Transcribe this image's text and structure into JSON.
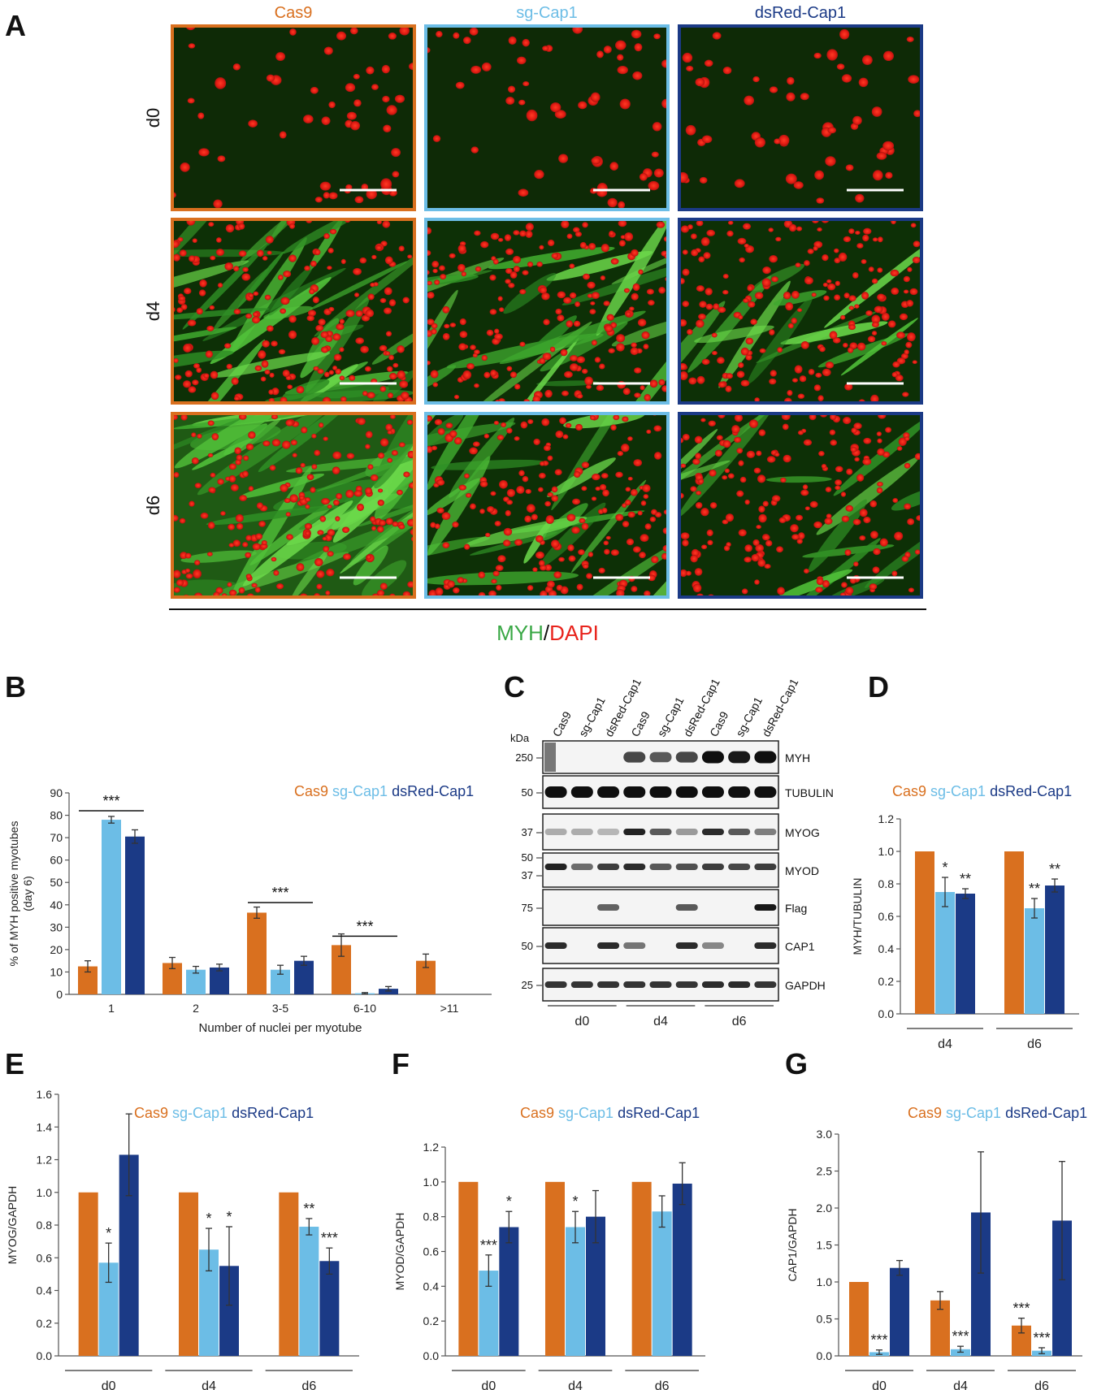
{
  "colors": {
    "cas9": "#d9701f",
    "sg": "#6cbde6",
    "ds": "#1b3a86",
    "green": "#39a845",
    "red": "#e8231c"
  },
  "panel_letters": [
    "A",
    "B",
    "C",
    "D",
    "E",
    "F",
    "G"
  ],
  "panelA": {
    "columns": [
      "Cas9",
      "sg-Cap1",
      "dsRed-Cap1"
    ],
    "rows": [
      "d0",
      "d4",
      "d6"
    ],
    "stain_green": "MYH",
    "stain_slash": "/",
    "stain_red": "DAPI"
  },
  "legend": [
    "Cas9",
    "sg-Cap1",
    "dsRed-Cap1"
  ],
  "panelC": {
    "kda_label": "kDa",
    "lanes": [
      "Cas9",
      "sg-Cap1",
      "dsRed-Cap1",
      "Cas9",
      "sg-Cap1",
      "dsRed-Cap1",
      "Cas9",
      "sg-Cap1",
      "dsRed-Cap1"
    ],
    "groups": [
      "d0",
      "d4",
      "d6"
    ],
    "blots": [
      {
        "name": "MYH",
        "markers": [
          "250"
        ],
        "bands": [
          0,
          0,
          0,
          0.7,
          0.6,
          0.7,
          1,
          0.95,
          1
        ]
      },
      {
        "name": "TUBULIN",
        "markers": [
          "50"
        ],
        "bands": [
          1,
          1,
          1,
          1,
          1,
          1,
          1,
          1,
          1
        ]
      },
      {
        "name": "MYOG",
        "markers": [
          "37"
        ],
        "bands": [
          0.15,
          0.15,
          0.1,
          0.9,
          0.6,
          0.25,
          0.85,
          0.6,
          0.4
        ]
      },
      {
        "name": "MYOD",
        "markers": [
          "50",
          "37"
        ],
        "bands": [
          0.9,
          0.5,
          0.75,
          0.85,
          0.6,
          0.65,
          0.75,
          0.7,
          0.75
        ]
      },
      {
        "name": "Flag",
        "markers": [
          "75"
        ],
        "bands": [
          0,
          0,
          0.55,
          0,
          0,
          0.6,
          0,
          0,
          0.95
        ]
      },
      {
        "name": "CAP1",
        "markers": [
          "50"
        ],
        "bands": [
          0.85,
          0,
          0.85,
          0.45,
          0,
          0.85,
          0.35,
          0,
          0.85
        ]
      },
      {
        "name": "GAPDH",
        "markers": [
          "25"
        ],
        "bands": [
          0.8,
          0.8,
          0.8,
          0.8,
          0.8,
          0.8,
          0.85,
          0.85,
          0.8
        ]
      }
    ]
  },
  "chart_data": [
    {
      "panel": "B",
      "type": "bar",
      "categories": [
        "1",
        "2",
        "3-5",
        "6-10",
        ">11"
      ],
      "series": [
        {
          "name": "Cas9",
          "values": [
            12.5,
            14,
            36.5,
            22,
            15
          ],
          "errors": [
            2.5,
            2.5,
            2.5,
            5,
            3
          ]
        },
        {
          "name": "sg-Cap1",
          "values": [
            78,
            11,
            11,
            0.5,
            0
          ],
          "errors": [
            1.5,
            1.5,
            2,
            0.3,
            0
          ]
        },
        {
          "name": "dsRed-Cap1",
          "values": [
            70.5,
            12,
            15,
            2.5,
            0
          ],
          "errors": [
            3,
            1.5,
            2,
            1,
            0
          ]
        }
      ],
      "ylim": [
        0,
        90
      ],
      "yticks": [
        "0",
        "10",
        "20",
        "30",
        "40",
        "50",
        "60",
        "70",
        "80",
        "90"
      ],
      "ylabel_lines": [
        "% of MYH positive myotubes",
        "(day 6)"
      ],
      "xlabel": "Number of nuclei per myotube",
      "significance": [
        {
          "from": 0,
          "to": 2,
          "y": 82,
          "label": "***"
        },
        {
          "from": 2,
          "to": 4,
          "y": 41,
          "label": "***"
        },
        {
          "from": 3,
          "to": 5,
          "y": 26,
          "label": "***"
        }
      ]
    },
    {
      "panel": "D",
      "type": "bar",
      "categories": [
        "d4",
        "d6"
      ],
      "series": [
        {
          "name": "Cas9",
          "values": [
            1.0,
            1.0
          ],
          "errors": [
            0,
            0
          ]
        },
        {
          "name": "sg-Cap1",
          "values": [
            0.75,
            0.65
          ],
          "errors": [
            0.09,
            0.06
          ]
        },
        {
          "name": "dsRed-Cap1",
          "values": [
            0.74,
            0.79
          ],
          "errors": [
            0.03,
            0.04
          ]
        }
      ],
      "marks": [
        [
          "",
          "",
          ""
        ],
        [
          "",
          "",
          ""
        ]
      ],
      "stars": [
        [
          "",
          "*",
          "**"
        ],
        [
          "",
          "**",
          "**"
        ]
      ],
      "ylim": [
        0,
        1.2
      ],
      "yticks": [
        "0.0",
        "0.2",
        "0.4",
        "0.6",
        "0.8",
        "1.0",
        "1.2"
      ],
      "ylabel": "MYH/TUBULIN"
    },
    {
      "panel": "E",
      "type": "bar",
      "categories": [
        "d0",
        "d4",
        "d6"
      ],
      "series": [
        {
          "name": "Cas9",
          "values": [
            1.0,
            1.0,
            1.0
          ],
          "errors": [
            0,
            0,
            0
          ]
        },
        {
          "name": "sg-Cap1",
          "values": [
            0.57,
            0.65,
            0.79
          ],
          "errors": [
            0.12,
            0.13,
            0.05
          ]
        },
        {
          "name": "dsRed-Cap1",
          "values": [
            1.23,
            0.55,
            0.58
          ],
          "errors": [
            0.25,
            0.24,
            0.08
          ]
        }
      ],
      "stars": [
        [
          "",
          "*",
          ""
        ],
        [
          "",
          "*",
          "*"
        ],
        [
          "",
          "**",
          "***"
        ]
      ],
      "ylim": [
        0,
        1.6
      ],
      "yticks": [
        "0.0",
        "0.2",
        "0.4",
        "0.6",
        "0.8",
        "1.0",
        "1.2",
        "1.4",
        "1.6"
      ],
      "ylabel": "MYOG/GAPDH"
    },
    {
      "panel": "F",
      "type": "bar",
      "categories": [
        "d0",
        "d4",
        "d6"
      ],
      "series": [
        {
          "name": "Cas9",
          "values": [
            1.0,
            1.0,
            1.0
          ],
          "errors": [
            0,
            0,
            0
          ]
        },
        {
          "name": "sg-Cap1",
          "values": [
            0.49,
            0.74,
            0.83
          ],
          "errors": [
            0.09,
            0.09,
            0.09
          ]
        },
        {
          "name": "dsRed-Cap1",
          "values": [
            0.74,
            0.8,
            0.99
          ],
          "errors": [
            0.09,
            0.15,
            0.12
          ]
        }
      ],
      "stars": [
        [
          "",
          "***",
          "*"
        ],
        [
          "",
          "*",
          ""
        ],
        [
          "",
          "",
          ""
        ]
      ],
      "ylim": [
        0,
        1.2
      ],
      "yticks": [
        "0.0",
        "0.2",
        "0.4",
        "0.6",
        "0.8",
        "1.0",
        "1.2"
      ],
      "ylabel": "MYOD/GAPDH"
    },
    {
      "panel": "G",
      "type": "bar",
      "categories": [
        "d0",
        "d4",
        "d6"
      ],
      "series": [
        {
          "name": "Cas9",
          "values": [
            1.0,
            0.75,
            0.41
          ],
          "errors": [
            0,
            0.12,
            0.1
          ]
        },
        {
          "name": "sg-Cap1",
          "values": [
            0.05,
            0.09,
            0.07
          ],
          "errors": [
            0.03,
            0.04,
            0.04
          ]
        },
        {
          "name": "dsRed-Cap1",
          "values": [
            1.19,
            1.94,
            1.83
          ],
          "errors": [
            0.1,
            0.82,
            0.8
          ]
        }
      ],
      "stars": [
        [
          "",
          "***",
          ""
        ],
        [
          "",
          "***",
          ""
        ],
        [
          "***",
          "***",
          ""
        ]
      ],
      "ylim": [
        0,
        3.0
      ],
      "yticks": [
        "0.0",
        "0.5",
        "1.0",
        "1.5",
        "2.0",
        "2.5",
        "3.0"
      ],
      "ylabel": "CAP1/GAPDH"
    }
  ]
}
